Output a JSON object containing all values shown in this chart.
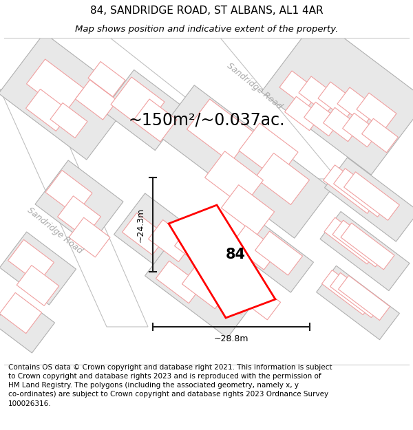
{
  "title_line1": "84, SANDRIDGE ROAD, ST ALBANS, AL1 4AR",
  "title_line2": "Map shows position and indicative extent of the property.",
  "area_text": "~150m²/~0.037ac.",
  "label_84": "84",
  "dim_h": "~24.3m",
  "dim_w": "~28.8m",
  "road_label": "Sandridge Road",
  "footnote": "Contains OS data © Crown copyright and database right 2021. This information is subject\nto Crown copyright and database rights 2023 and is reproduced with the permission of\nHM Land Registry. The polygons (including the associated geometry, namely x, y\nco-ordinates) are subject to Crown copyright and database rights 2023 Ordnance Survey\n100026316.",
  "bg_color": "#ffffff",
  "map_bg": "#ffffff",
  "block_fill": "#e8e8e8",
  "block_edge": "#b0b0b0",
  "sub_fill": "#ffffff",
  "sub_edge": "#f0a0a0",
  "highlight_fill": "#ffffff",
  "highlight_edge": "#ff0000",
  "road_fill": "#ffffff",
  "road_edge": "#c0c0c0",
  "dim_color": "#1a1a1a",
  "road_text_color": "#aaaaaa",
  "title_fontsize": 11,
  "subtitle_fontsize": 9.5,
  "area_fontsize": 17,
  "label_fontsize": 15,
  "dim_fontsize": 9,
  "footnote_fontsize": 7.5,
  "road_fontsize": 9
}
